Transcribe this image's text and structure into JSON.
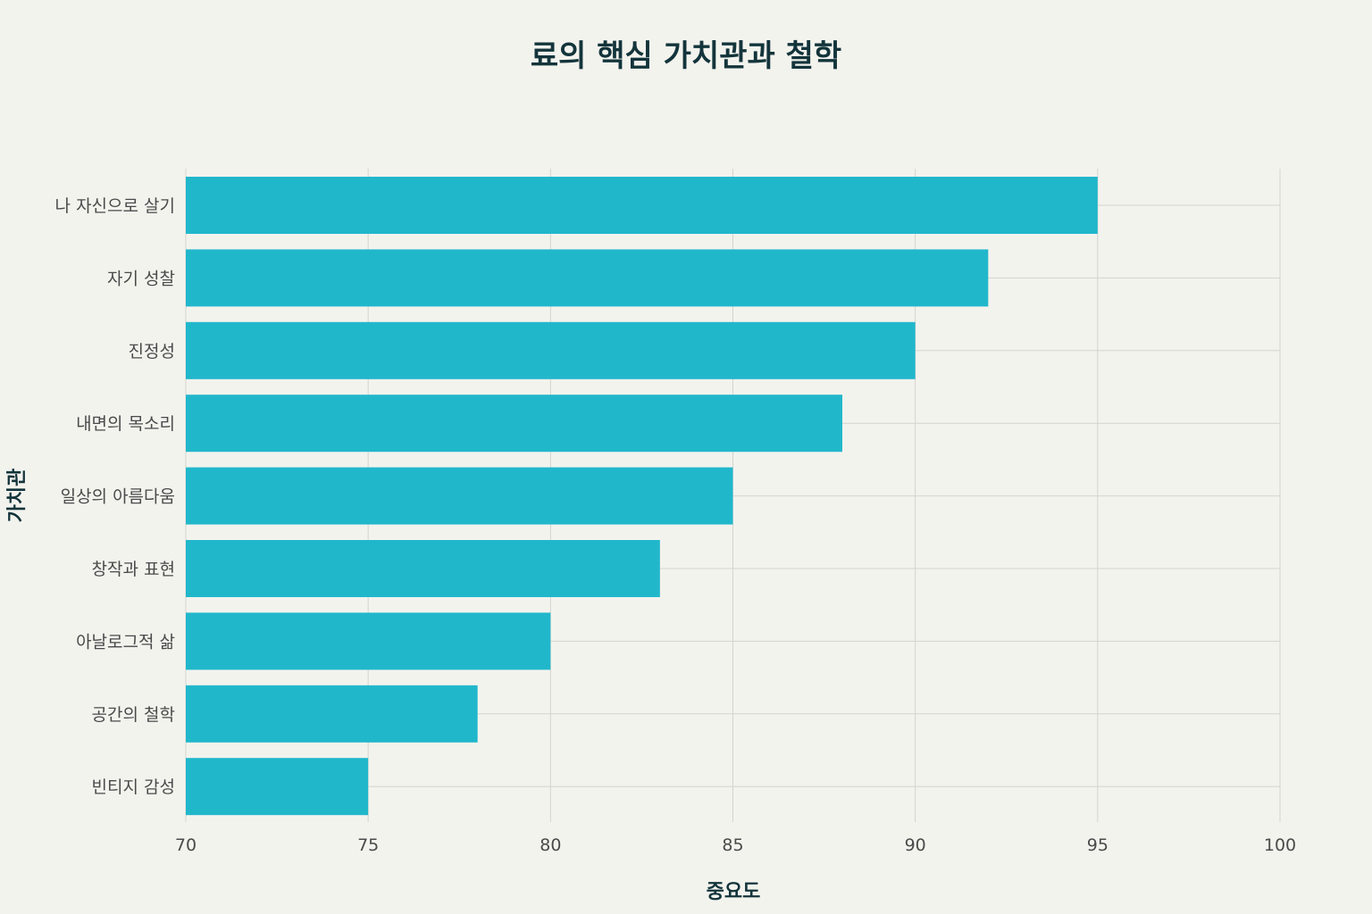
{
  "chart_data": {
    "type": "bar",
    "orientation": "horizontal",
    "title": "료의 핵심 가치관과 철학",
    "xlabel": "중요도",
    "ylabel": "가치관",
    "categories": [
      "나 자신으로 살기",
      "자기 성찰",
      "진정성",
      "내면의 목소리",
      "일상의 아름다움",
      "창작과 표현",
      "아날로그적 삶",
      "공간의 철학",
      "빈티지 감성"
    ],
    "values": [
      95,
      92,
      90,
      88,
      85,
      83,
      80,
      78,
      75
    ],
    "xlim": [
      70,
      100
    ],
    "xticks": [
      70,
      75,
      80,
      85,
      90,
      95,
      100
    ],
    "grid": true,
    "legend": "none",
    "colors": {
      "bar": "#21b7cb",
      "background": "#f3f3ee",
      "title": "#13343b",
      "grid": "#d4d4cf"
    }
  }
}
